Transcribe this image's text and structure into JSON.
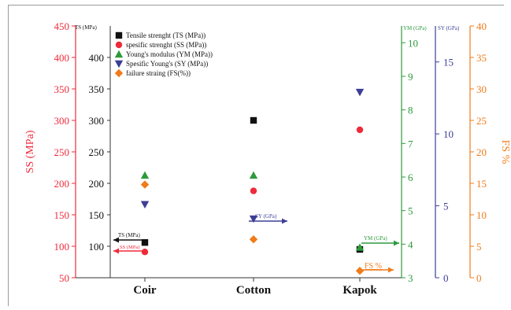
{
  "chart_data": {
    "type": "scatter",
    "categories": [
      "Coir",
      "Cotton",
      "Kapok"
    ],
    "axes": {
      "ss": {
        "label": "SS (MPa)",
        "range": [
          50,
          450
        ],
        "ticks": [
          50,
          100,
          150,
          200,
          250,
          300,
          350,
          400,
          450
        ],
        "color": "#ee2b3b"
      },
      "ts": {
        "label": "TS (MPa)",
        "range": [
          50,
          450
        ],
        "ticks": [
          100,
          150,
          200,
          250,
          300,
          350,
          400
        ],
        "color": "#111111"
      },
      "ym": {
        "label": "YM (GPa)",
        "range": [
          3,
          10.5
        ],
        "ticks": [
          3,
          4,
          5,
          6,
          7,
          8,
          9,
          10
        ],
        "color": "#2e9a3c"
      },
      "sy": {
        "label": "SY (GPa)",
        "range": [
          0,
          17.5
        ],
        "ticks": [
          0,
          5,
          10,
          15
        ],
        "color": "#3c3f95"
      },
      "fs": {
        "label": "FS %",
        "range": [
          0,
          40
        ],
        "ticks": [
          0,
          5,
          10,
          15,
          20,
          25,
          30,
          35,
          40
        ],
        "color": "#f07b1b"
      }
    },
    "series": [
      {
        "name": "Tensile strenght (TS (MPa))",
        "axis": "ts",
        "marker": "square",
        "color": "#111111",
        "values": [
          106,
          300,
          95
        ]
      },
      {
        "name": "spesific strenght (SS (MPa))",
        "axis": "ss",
        "marker": "circle",
        "color": "#ee2b3b",
        "values": [
          91,
          188,
          285
        ]
      },
      {
        "name": "Young's modulus (YM (MPa))",
        "axis": "ym",
        "marker": "triangle-up",
        "color": "#2e9a3c",
        "values": [
          6.05,
          6.05,
          3.9
        ]
      },
      {
        "name": "Spesific Young's (SY (MPa))",
        "axis": "sy",
        "marker": "triangle-down",
        "color": "#3c3f95",
        "values": [
          5.1,
          4.1,
          12.9
        ]
      },
      {
        "name": "failure straing (FS(%))",
        "axis": "fs",
        "marker": "diamond",
        "color": "#f07b1b",
        "values": [
          14.8,
          6.1,
          1.1
        ]
      }
    ],
    "annotations": [
      {
        "text": "TS (MPa)",
        "color": "#111111",
        "target": "ts"
      },
      {
        "text": "SS (MPa)",
        "color": "#ee2b3b",
        "target": "ss"
      },
      {
        "text": "SY (GPa)",
        "color": "#3c3f95",
        "target": "sy"
      },
      {
        "text": "YM (GPa)",
        "color": "#2e9a3c",
        "target": "ym"
      },
      {
        "text": "FS %",
        "color": "#f07b1b",
        "target": "fs"
      }
    ],
    "legend_position": "top-left",
    "grid": false
  }
}
